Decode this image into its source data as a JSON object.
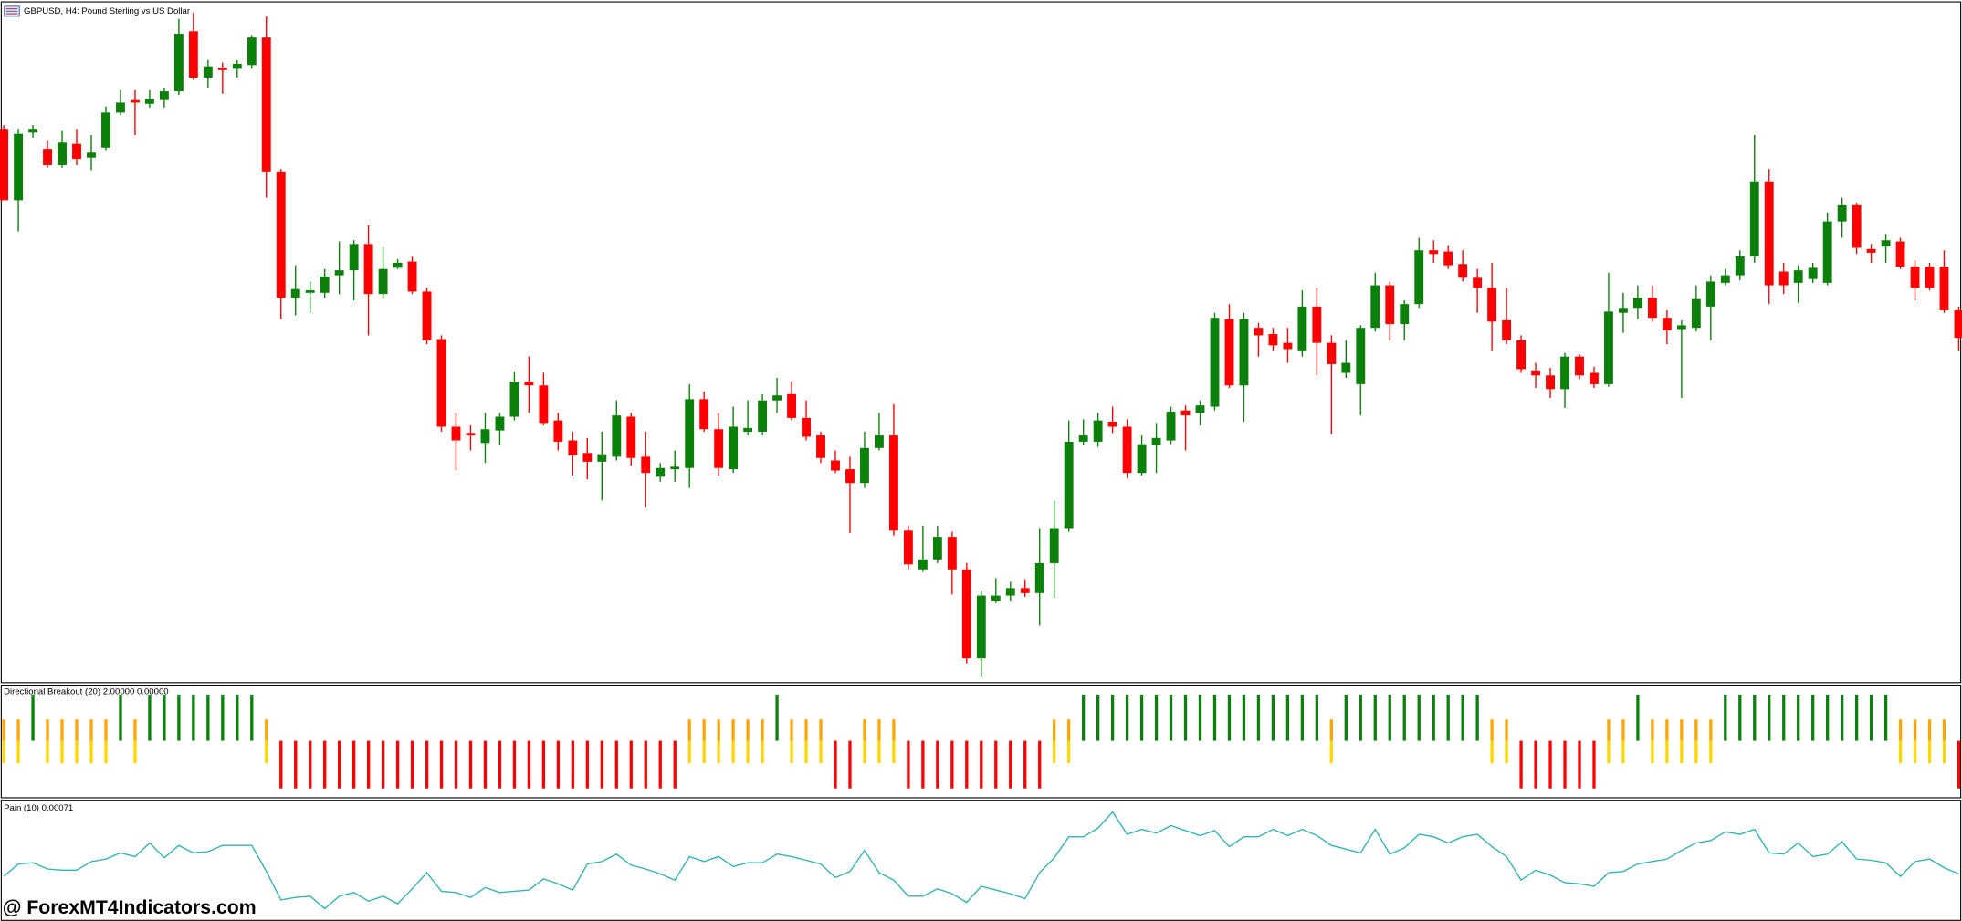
{
  "chart_data": [
    {
      "type": "candlestick",
      "title": "GBPUSD, H4:  Pound Sterling vs US Dollar",
      "ylim": [
        5,
        548
      ],
      "up_color": "#0b800b",
      "down_color": "#ff0000",
      "open": [
        447,
        390,
        444,
        431,
        418,
        435,
        424,
        432,
        460,
        470,
        467,
        470,
        477,
        525,
        488,
        496,
        495,
        498,
        520,
        413,
        312,
        316,
        316,
        330,
        334,
        355,
        315,
        336,
        341,
        317,
        279,
        209,
        204,
        196,
        206,
        217,
        245,
        242,
        214,
        198,
        188,
        181,
        185,
        217,
        185,
        169,
        175,
        176,
        231,
        207,
        175,
        205,
        205,
        230,
        235,
        216,
        202,
        182,
        175,
        164,
        192,
        202,
        126,
        95,
        103,
        121,
        95,
        24,
        70,
        74,
        80,
        76,
        100,
        128,
        197,
        197,
        213,
        209,
        172,
        194,
        198,
        222,
        220,
        225,
        295,
        242,
        288,
        283,
        276,
        270,
        305,
        276,
        252,
        243,
        288,
        322,
        291,
        307,
        350,
        349,
        339,
        328,
        320,
        294,
        278,
        254,
        250,
        239,
        265,
        252,
        243,
        300,
        304,
        312,
        296,
        287,
        288,
        305,
        324,
        330,
        345,
        405,
        333,
        324,
        327,
        324,
        373,
        386,
        351,
        353,
        357,
        337,
        337,
        337,
        302
      ],
      "high": [
        450,
        447,
        450,
        438,
        446,
        447,
        442,
        465,
        478,
        478,
        478,
        480,
        535,
        540,
        502,
        500,
        502,
        522,
        537,
        415,
        338,
        325,
        335,
        357,
        358,
        370,
        352,
        343,
        345,
        320,
        282,
        220,
        210,
        220,
        220,
        253,
        265,
        252,
        220,
        205,
        200,
        205,
        230,
        220,
        205,
        180,
        190,
        243,
        237,
        220,
        225,
        230,
        235,
        248,
        245,
        230,
        205,
        190,
        185,
        205,
        220,
        227,
        130,
        130,
        130,
        125,
        100,
        78,
        88,
        85,
        87,
        128,
        150,
        214,
        215,
        220,
        225,
        215,
        202,
        212,
        225,
        226,
        230,
        300,
        307,
        300,
        292,
        288,
        288,
        318,
        320,
        282,
        278,
        290,
        332,
        325,
        310,
        360,
        358,
        354,
        350,
        335,
        340,
        320,
        282,
        260,
        256,
        268,
        267,
        257,
        332,
        316,
        322,
        322,
        302,
        294,
        322,
        330,
        335,
        350,
        442,
        415,
        340,
        338,
        340,
        380,
        392,
        388,
        355,
        363,
        360,
        342,
        340,
        350,
        305
      ],
      "low": [
        390,
        365,
        440,
        416,
        416,
        418,
        414,
        430,
        458,
        442,
        464,
        464,
        474,
        486,
        480,
        475,
        488,
        495,
        392,
        295,
        298,
        300,
        312,
        315,
        310,
        282,
        312,
        335,
        315,
        275,
        205,
        174,
        190,
        180,
        194,
        214,
        220,
        210,
        190,
        170,
        167,
        150,
        182,
        178,
        145,
        165,
        165,
        160,
        205,
        170,
        172,
        202,
        202,
        220,
        214,
        198,
        180,
        172,
        124,
        160,
        190,
        122,
        95,
        93,
        100,
        75,
        20,
        9,
        68,
        70,
        73,
        50,
        72,
        125,
        194,
        193,
        204,
        168,
        170,
        172,
        195,
        190,
        210,
        222,
        240,
        213,
        265,
        270,
        260,
        265,
        250,
        203,
        248,
        218,
        285,
        278,
        278,
        304,
        340,
        335,
        325,
        300,
        270,
        275,
        252,
        240,
        232,
        224,
        247,
        240,
        241,
        284,
        295,
        293,
        275,
        232,
        285,
        278,
        322,
        326,
        340,
        307,
        315,
        308,
        324,
        322,
        360,
        347,
        340,
        340,
        335,
        310,
        318,
        300,
        270
      ],
      "close": [
        390,
        443,
        447,
        418,
        436,
        423,
        428,
        460,
        468,
        468,
        471,
        477,
        523,
        488,
        497,
        494,
        499,
        520,
        413,
        312,
        319,
        318,
        329,
        334,
        355,
        315,
        335,
        340,
        317,
        278,
        209,
        198,
        202,
        207,
        217,
        245,
        242,
        212,
        197,
        186,
        181,
        187,
        218,
        184,
        172,
        176,
        177,
        231,
        207,
        176,
        209,
        208,
        230,
        234,
        216,
        201,
        184,
        174,
        164,
        192,
        202,
        126,
        99,
        103,
        121,
        95,
        24,
        74,
        74,
        80,
        76,
        100,
        128,
        197,
        202,
        214,
        209,
        172,
        195,
        200,
        221,
        218,
        226,
        296,
        242,
        295,
        282,
        274,
        271,
        305,
        276,
        259,
        260,
        288,
        322,
        291,
        307,
        350,
        347,
        338,
        328,
        320,
        293,
        278,
        255,
        250,
        239,
        265,
        250,
        243,
        301,
        304,
        312,
        296,
        286,
        290,
        311,
        325,
        330,
        345,
        405,
        322,
        322,
        334,
        336,
        373,
        386,
        352,
        348,
        358,
        337,
        320,
        320,
        302,
        280
      ]
    },
    {
      "type": "signal",
      "title": "Directional Breakout (20) 2.00000 0.00000",
      "up_color": "#0b800b",
      "mid_colors": [
        "#ffa500",
        "#ffd700"
      ],
      "down_color": "#ff0000",
      "values": [
        0,
        0,
        1,
        0,
        0,
        0,
        0,
        0,
        1,
        0,
        1,
        1,
        1,
        1,
        1,
        1,
        1,
        1,
        0,
        -1,
        -1,
        -1,
        -1,
        -1,
        -1,
        -1,
        -1,
        -1,
        -1,
        -1,
        -1,
        -1,
        -1,
        -1,
        -1,
        -1,
        -1,
        -1,
        -1,
        -1,
        -1,
        -1,
        -1,
        -1,
        -1,
        -1,
        -1,
        0,
        0,
        0,
        0,
        0,
        0,
        1,
        0,
        0,
        0,
        -1,
        -1,
        0,
        0,
        0,
        -1,
        -1,
        -1,
        -1,
        -1,
        -1,
        -1,
        -1,
        -1,
        -1,
        0,
        0,
        1,
        1,
        1,
        1,
        1,
        1,
        1,
        1,
        1,
        1,
        1,
        1,
        1,
        1,
        1,
        1,
        1,
        0,
        1,
        1,
        1,
        1,
        1,
        1,
        1,
        1,
        1,
        1,
        0,
        0,
        -1,
        -1,
        -1,
        -1,
        -1,
        -1,
        0,
        0,
        1,
        0,
        0,
        0,
        0,
        0,
        1,
        1,
        1,
        1,
        1,
        1,
        1,
        1,
        1,
        1,
        1,
        1,
        0,
        0,
        0,
        0,
        -1
      ]
    },
    {
      "type": "line",
      "title": "Pain (10) 0.00071",
      "color": "#2fb5b0",
      "ylim": [
        5,
        102
      ],
      "values": [
        40,
        50,
        51,
        46,
        45,
        45,
        52,
        54,
        59,
        56,
        67,
        55,
        65,
        59,
        60,
        65,
        65,
        65,
        44,
        21,
        23,
        24,
        14,
        24,
        27,
        20,
        24,
        18,
        30,
        43,
        28,
        27,
        23,
        31,
        27,
        28,
        29,
        38,
        34,
        29,
        50,
        52,
        58,
        49,
        46,
        42,
        37,
        56,
        52,
        56,
        48,
        51,
        51,
        58,
        56,
        53,
        50,
        39,
        44,
        61,
        43,
        37,
        24,
        24,
        30,
        26,
        19,
        32,
        29,
        26,
        22,
        43,
        55,
        72,
        72,
        79,
        92,
        74,
        78,
        75,
        81,
        77,
        73,
        77,
        64,
        72,
        72,
        78,
        73,
        78,
        73,
        65,
        62,
        59,
        78,
        58,
        63,
        74,
        72,
        67,
        72,
        74,
        64,
        56,
        37,
        45,
        41,
        35,
        34,
        32,
        43,
        44,
        50,
        52,
        54,
        61,
        67,
        69,
        76,
        74,
        78,
        59,
        58,
        67,
        56,
        58,
        68,
        54,
        53,
        51,
        40,
        52,
        54,
        47,
        42
      ]
    }
  ],
  "watermark": "@ ForexMT4Indicators.com"
}
